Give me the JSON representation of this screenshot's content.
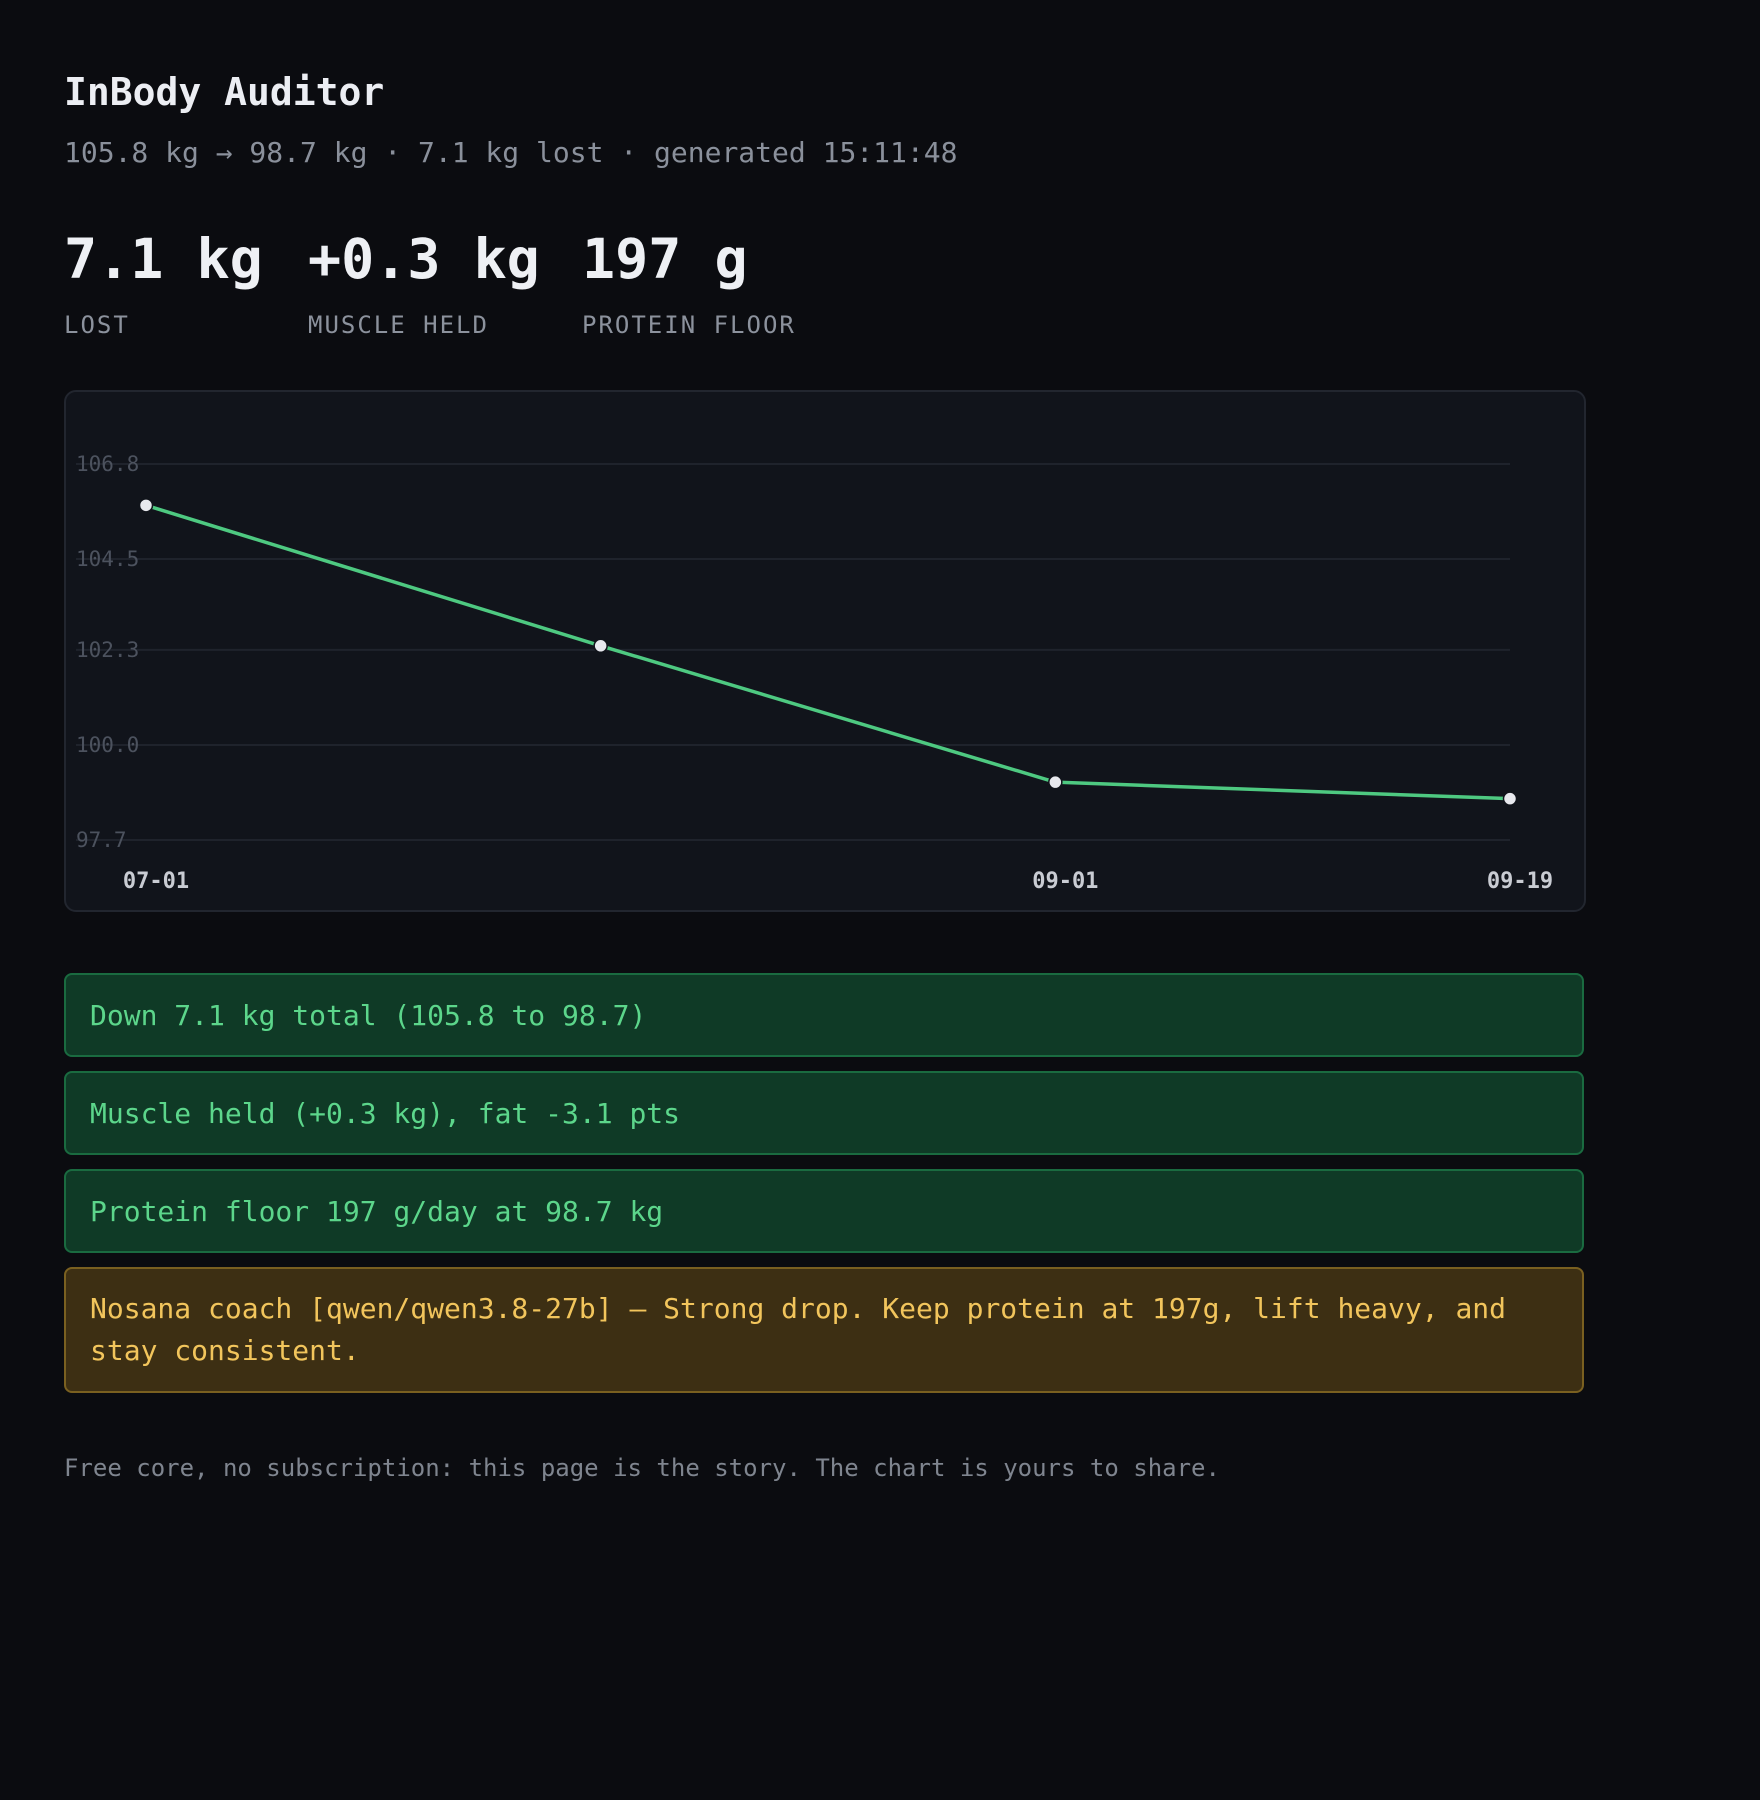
{
  "header": {
    "title": "InBody Auditor",
    "subtitle": "105.8 kg → 98.7 kg · 7.1 kg lost · generated 15:11:48"
  },
  "stats": [
    {
      "value": "7.1 kg",
      "label": "LOST"
    },
    {
      "value": "+0.3 kg",
      "label": "MUSCLE HELD"
    },
    {
      "value": "197 g",
      "label": "PROTEIN FLOOR"
    }
  ],
  "chart_data": {
    "type": "line",
    "title": "",
    "xlabel": "",
    "ylabel": "",
    "x": [
      "07-01",
      "",
      "09-01",
      "09-19"
    ],
    "x_tick_labels": [
      "07-01",
      "09-01",
      "09-19"
    ],
    "values": [
      105.8,
      102.4,
      99.1,
      98.7
    ],
    "y_ticks": [
      "106.8",
      "104.5",
      "102.3",
      "100.0",
      "97.7"
    ],
    "ylim": [
      97.7,
      106.8
    ],
    "grid": true,
    "legend": "none",
    "line_color": "#4ec981",
    "point_color": "#e8e9ee"
  },
  "banners": [
    {
      "kind": "ok",
      "text": "Down 7.1 kg total (105.8 to 98.7)"
    },
    {
      "kind": "ok",
      "text": "Muscle held (+0.3 kg), fat -3.1 pts"
    },
    {
      "kind": "ok",
      "text": "Protein floor 197 g/day at 98.7 kg"
    },
    {
      "kind": "coach",
      "text": "Nosana coach [qwen/qwen3.8-27b] — Strong drop. Keep protein at 197g, lift heavy, and stay consistent."
    }
  ],
  "footer": {
    "text": "Free core, no subscription: this page is the story. The chart is yours to share."
  },
  "colors": {
    "background": "#0b0c10",
    "success_bg": "#0f3a26",
    "success_text": "#5cd68b",
    "warning_bg": "#3d2f13",
    "warning_text": "#f2c55c"
  }
}
